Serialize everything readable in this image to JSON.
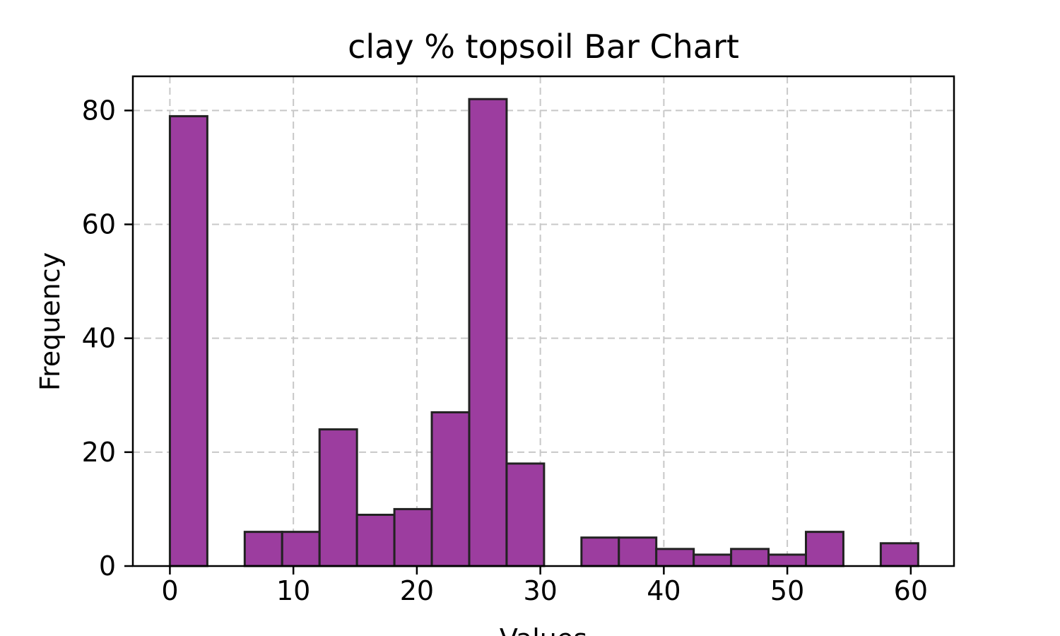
{
  "chart_data": {
    "type": "bar",
    "title": "clay % topsoil Bar Chart",
    "xlabel": "Values",
    "ylabel": "Frequency",
    "xlim": [
      -3,
      63.5
    ],
    "ylim": [
      0,
      86
    ],
    "xticks": [
      0,
      10,
      20,
      30,
      40,
      50,
      60
    ],
    "yticks": [
      0,
      20,
      40,
      60,
      80
    ],
    "grid": true,
    "bar_color": "#9c3d9f",
    "bar_edge_color": "#222222",
    "bins": [
      {
        "x0": 0.0,
        "x1": 3.03,
        "value": 79
      },
      {
        "x0": 3.03,
        "x1": 6.06,
        "value": 0
      },
      {
        "x0": 6.06,
        "x1": 9.09,
        "value": 6
      },
      {
        "x0": 9.09,
        "x1": 12.12,
        "value": 6
      },
      {
        "x0": 12.12,
        "x1": 15.15,
        "value": 24
      },
      {
        "x0": 15.15,
        "x1": 18.18,
        "value": 9
      },
      {
        "x0": 18.18,
        "x1": 21.21,
        "value": 10
      },
      {
        "x0": 21.21,
        "x1": 24.24,
        "value": 27
      },
      {
        "x0": 24.24,
        "x1": 27.27,
        "value": 82
      },
      {
        "x0": 27.27,
        "x1": 30.3,
        "value": 18
      },
      {
        "x0": 30.3,
        "x1": 33.33,
        "value": 0
      },
      {
        "x0": 33.33,
        "x1": 36.36,
        "value": 5
      },
      {
        "x0": 36.36,
        "x1": 39.39,
        "value": 5
      },
      {
        "x0": 39.39,
        "x1": 42.42,
        "value": 3
      },
      {
        "x0": 42.42,
        "x1": 45.45,
        "value": 2
      },
      {
        "x0": 45.45,
        "x1": 48.48,
        "value": 3
      },
      {
        "x0": 48.48,
        "x1": 51.51,
        "value": 2
      },
      {
        "x0": 51.51,
        "x1": 54.54,
        "value": 6
      },
      {
        "x0": 54.54,
        "x1": 57.57,
        "value": 0
      },
      {
        "x0": 57.57,
        "x1": 60.6,
        "value": 4
      }
    ]
  }
}
